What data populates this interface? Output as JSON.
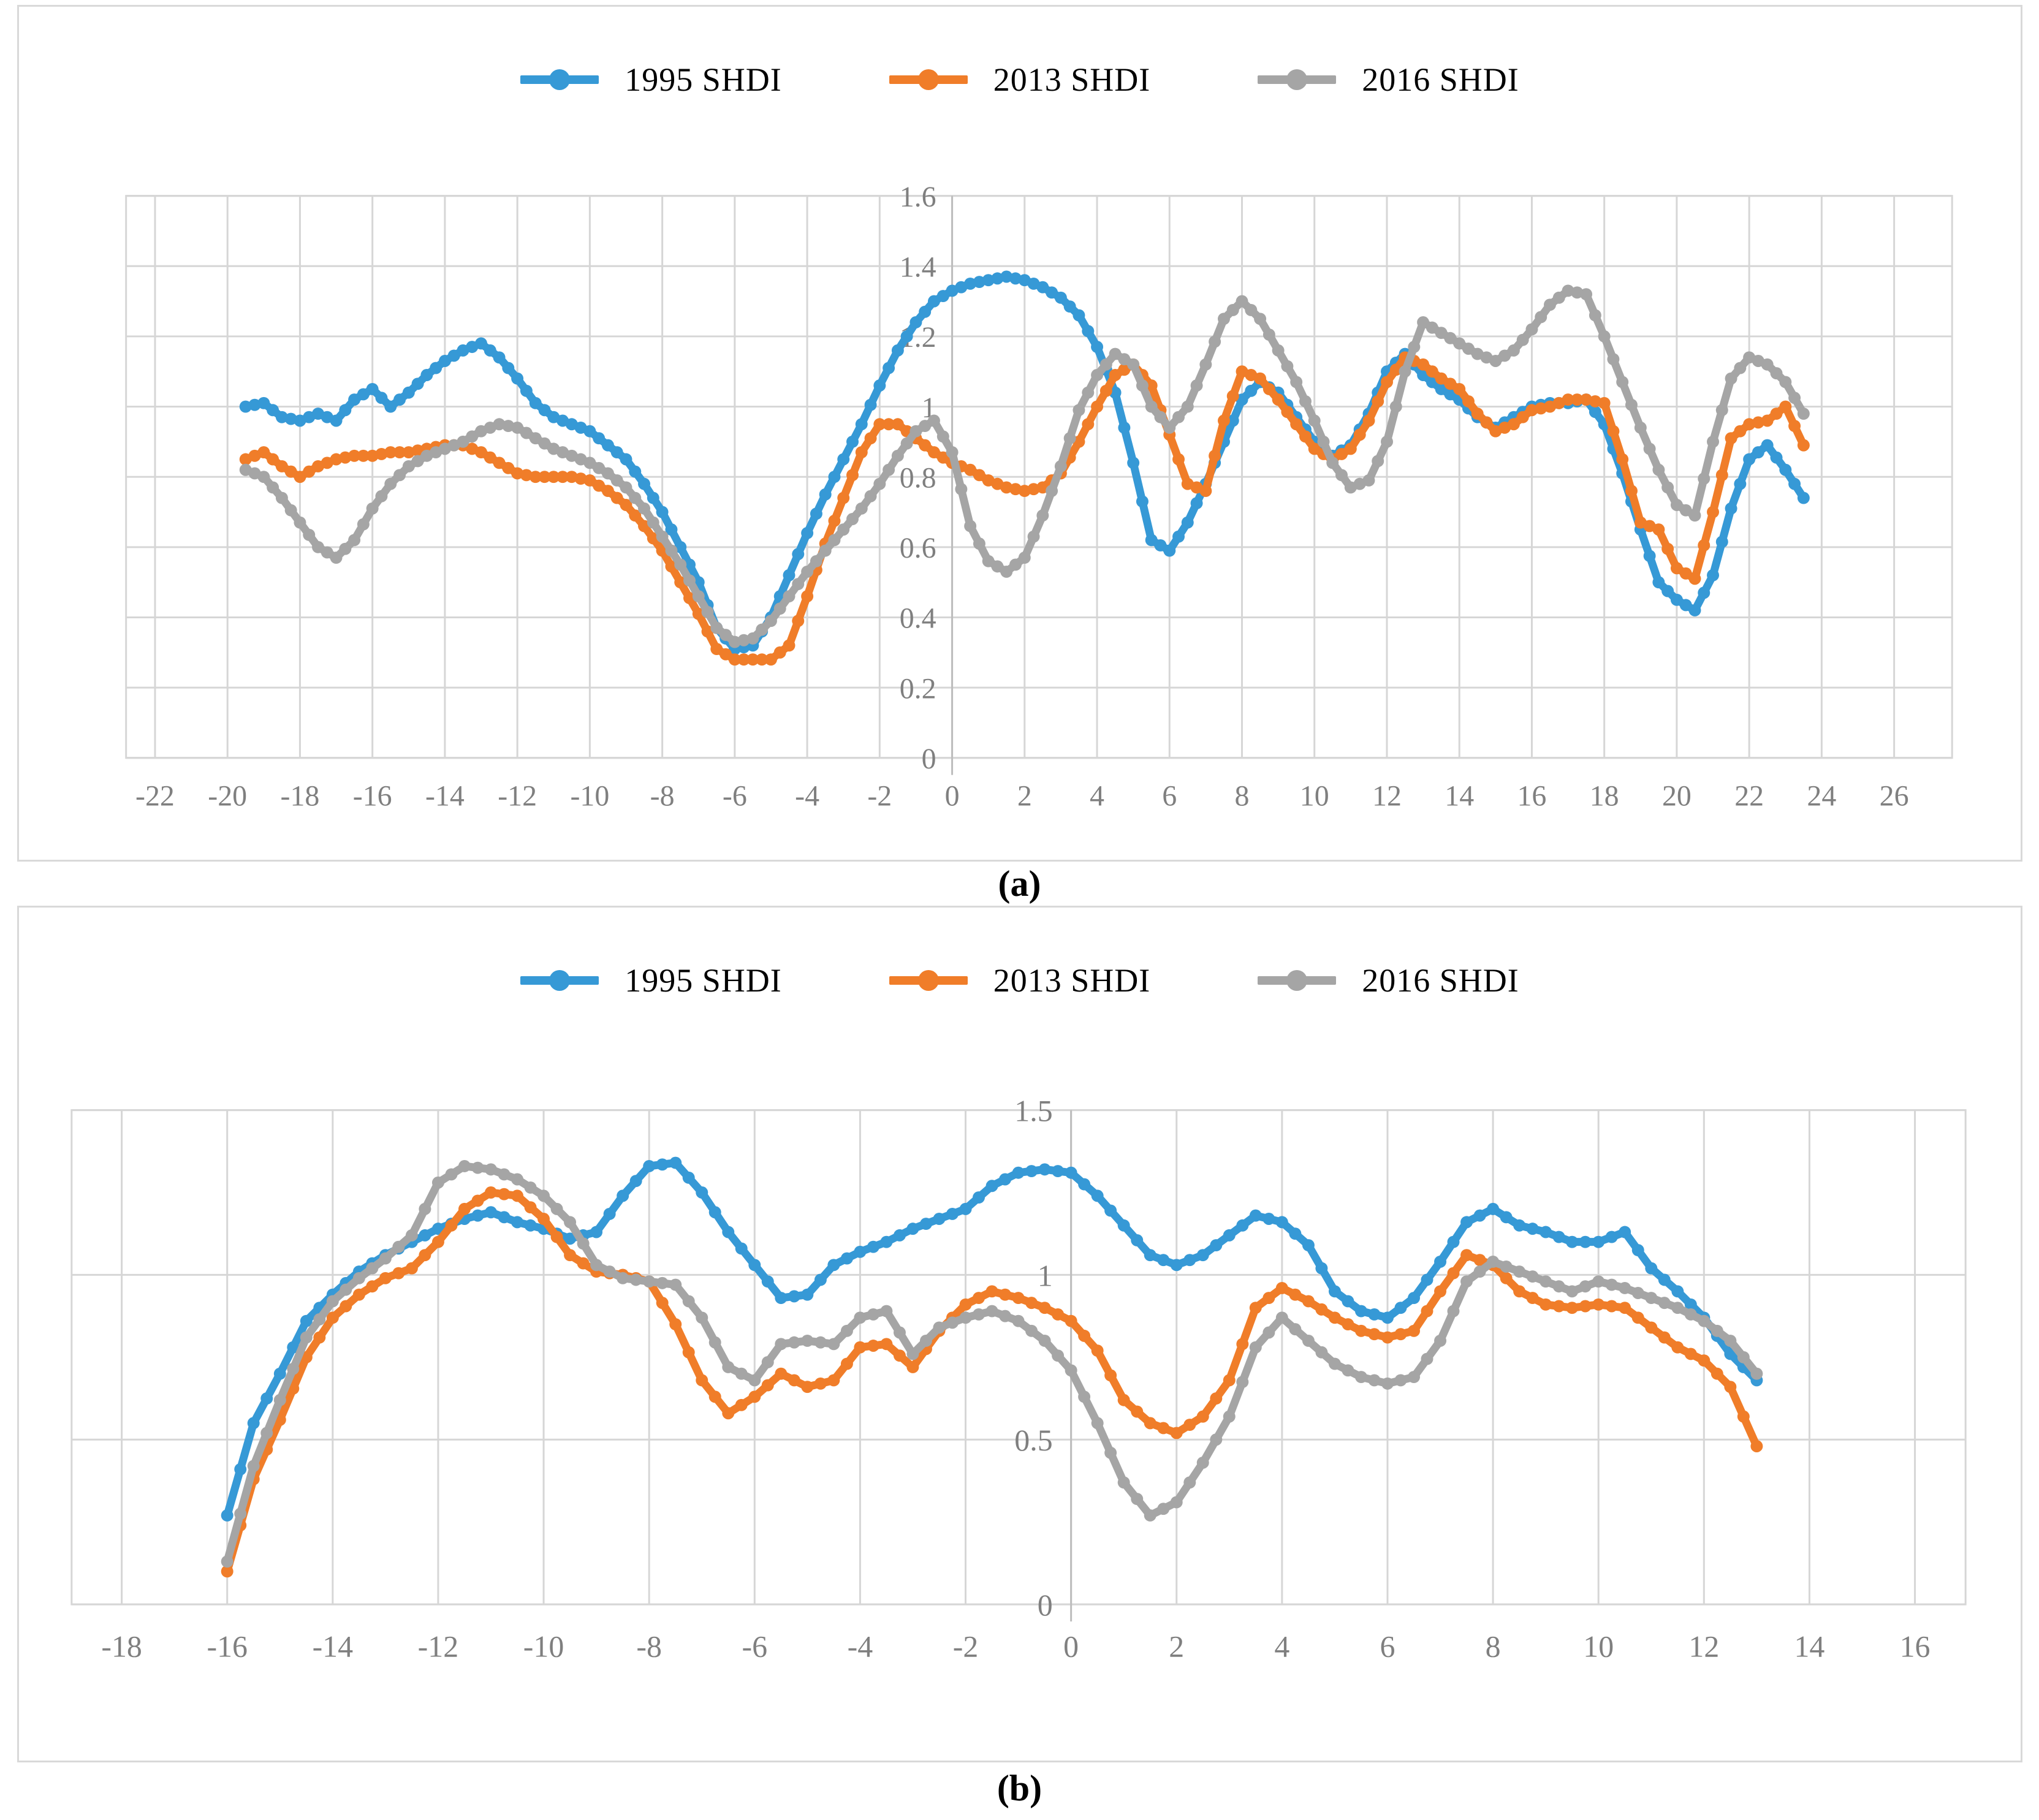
{
  "figure": {
    "captions": {
      "a": "(a)",
      "b": "(b)"
    }
  },
  "styles": {
    "background": "#ffffff",
    "panel_border": "#d9d9d9",
    "grid_color": "#d6d6d6",
    "axis_color": "#bdbdbd",
    "tick_color": "#7f7f7f",
    "series_blue": "#3699d6",
    "series_orange": "#f07d29",
    "series_gray": "#a5a5a5"
  },
  "chart_data": [
    {
      "id": "a",
      "type": "line",
      "title": "",
      "legend_position": "top",
      "grid": true,
      "xlabel": "",
      "ylabel": "",
      "xlim": [
        -22.8,
        27.6
      ],
      "ylim": [
        0,
        1.6
      ],
      "xticks": [
        -22,
        -20,
        -18,
        -16,
        -14,
        -12,
        -10,
        -8,
        -6,
        -4,
        -2,
        0,
        2,
        4,
        6,
        8,
        10,
        12,
        14,
        16,
        18,
        20,
        22,
        24,
        26
      ],
      "yticks": [
        0,
        0.2,
        0.4,
        0.6,
        0.8,
        1,
        1.2,
        1.4,
        1.6
      ],
      "ytick_labels": [
        "0",
        "0.2",
        "0.4",
        "0.6",
        "0.8",
        "1",
        "1.2",
        "1.4",
        "1.6"
      ],
      "x_start": -19.5,
      "x_step": 0.5,
      "x_range": [
        -19.5,
        23.5
      ],
      "series": [
        {
          "name": "1995 SHDI",
          "color": "#3699d6",
          "values": [
            1.0,
            1.01,
            0.97,
            0.96,
            0.98,
            0.96,
            1.02,
            1.05,
            1.0,
            1.04,
            1.09,
            1.13,
            1.16,
            1.18,
            1.14,
            1.08,
            1.01,
            0.97,
            0.95,
            0.93,
            0.89,
            0.85,
            0.78,
            0.7,
            0.6,
            0.5,
            0.37,
            0.31,
            0.32,
            0.4,
            0.52,
            0.64,
            0.75,
            0.85,
            0.95,
            1.06,
            1.16,
            1.24,
            1.3,
            1.33,
            1.35,
            1.36,
            1.37,
            1.36,
            1.34,
            1.31,
            1.26,
            1.17,
            1.04,
            0.84,
            0.62,
            0.59,
            0.67,
            0.78,
            0.9,
            1.02,
            1.07,
            1.04,
            0.97,
            0.9,
            0.86,
            0.89,
            0.98,
            1.1,
            1.15,
            1.09,
            1.05,
            1.02,
            0.97,
            0.94,
            0.97,
            1.0,
            1.01,
            1.01,
            1.02,
            0.95,
            0.81,
            0.65,
            0.5,
            0.45,
            0.42,
            0.52,
            0.71,
            0.85,
            0.89,
            0.82,
            0.74
          ]
        },
        {
          "name": "2013 SHDI",
          "color": "#f07d29",
          "values": [
            0.85,
            0.87,
            0.83,
            0.8,
            0.83,
            0.85,
            0.86,
            0.86,
            0.87,
            0.87,
            0.88,
            0.89,
            0.89,
            0.87,
            0.84,
            0.81,
            0.8,
            0.8,
            0.8,
            0.79,
            0.76,
            0.72,
            0.66,
            0.59,
            0.5,
            0.41,
            0.31,
            0.28,
            0.28,
            0.28,
            0.32,
            0.46,
            0.61,
            0.74,
            0.87,
            0.95,
            0.95,
            0.91,
            0.87,
            0.84,
            0.82,
            0.79,
            0.77,
            0.76,
            0.77,
            0.81,
            0.9,
            1.0,
            1.09,
            1.12,
            1.06,
            0.92,
            0.78,
            0.76,
            0.96,
            1.1,
            1.08,
            1.02,
            0.95,
            0.88,
            0.85,
            0.88,
            0.96,
            1.07,
            1.14,
            1.12,
            1.08,
            1.05,
            0.98,
            0.93,
            0.95,
            0.99,
            1.0,
            1.02,
            1.02,
            1.01,
            0.85,
            0.67,
            0.65,
            0.54,
            0.51,
            0.7,
            0.91,
            0.95,
            0.96,
            1.0,
            0.89
          ]
        },
        {
          "name": "2016 SHDI",
          "color": "#a5a5a5",
          "values": [
            0.82,
            0.8,
            0.74,
            0.67,
            0.6,
            0.57,
            0.62,
            0.71,
            0.78,
            0.83,
            0.86,
            0.88,
            0.9,
            0.93,
            0.95,
            0.94,
            0.91,
            0.88,
            0.86,
            0.84,
            0.81,
            0.77,
            0.71,
            0.63,
            0.55,
            0.46,
            0.37,
            0.33,
            0.34,
            0.39,
            0.46,
            0.53,
            0.59,
            0.65,
            0.71,
            0.78,
            0.86,
            0.93,
            0.96,
            0.87,
            0.66,
            0.56,
            0.53,
            0.57,
            0.69,
            0.83,
            0.99,
            1.09,
            1.15,
            1.12,
            1.0,
            0.94,
            1.0,
            1.12,
            1.25,
            1.3,
            1.25,
            1.16,
            1.07,
            0.96,
            0.84,
            0.77,
            0.79,
            0.9,
            1.1,
            1.24,
            1.21,
            1.18,
            1.15,
            1.13,
            1.16,
            1.22,
            1.29,
            1.33,
            1.32,
            1.2,
            1.07,
            0.94,
            0.82,
            0.72,
            0.69,
            0.9,
            1.08,
            1.14,
            1.12,
            1.07,
            0.98
          ]
        }
      ]
    },
    {
      "id": "b",
      "type": "line",
      "title": "",
      "legend_position": "top",
      "grid": true,
      "xlabel": "",
      "ylabel": "",
      "xlim": [
        -18.95,
        16.96
      ],
      "ylim": [
        0,
        1.5
      ],
      "xticks": [
        -18,
        -16,
        -14,
        -12,
        -10,
        -8,
        -6,
        -4,
        -2,
        0,
        2,
        4,
        6,
        8,
        10,
        12,
        14,
        16
      ],
      "yticks": [
        0,
        0.5,
        1,
        1.5
      ],
      "ytick_labels": [
        "0",
        "0.5",
        "1",
        "1.5"
      ],
      "x_start": -16,
      "x_step": 0.5,
      "x_range": [
        -16,
        13
      ],
      "series": [
        {
          "name": "1995 SHDI",
          "color": "#3699d6",
          "values": [
            0.27,
            0.55,
            0.7,
            0.86,
            0.94,
            1.01,
            1.06,
            1.1,
            1.14,
            1.17,
            1.19,
            1.16,
            1.14,
            1.11,
            1.13,
            1.24,
            1.33,
            1.34,
            1.25,
            1.13,
            1.03,
            0.93,
            0.94,
            1.03,
            1.07,
            1.1,
            1.14,
            1.17,
            1.2,
            1.27,
            1.31,
            1.32,
            1.31,
            1.24,
            1.15,
            1.06,
            1.03,
            1.06,
            1.12,
            1.18,
            1.16,
            1.09,
            0.95,
            0.89,
            0.87,
            0.93,
            1.04,
            1.16,
            1.2,
            1.15,
            1.13,
            1.1,
            1.1,
            1.13,
            1.02,
            0.95,
            0.87,
            0.76,
            0.68
          ]
        },
        {
          "name": "2013 SHDI",
          "color": "#f07d29",
          "values": [
            0.1,
            0.38,
            0.56,
            0.75,
            0.87,
            0.94,
            0.99,
            1.02,
            1.1,
            1.2,
            1.25,
            1.24,
            1.17,
            1.06,
            1.01,
            1.0,
            0.98,
            0.85,
            0.68,
            0.58,
            0.63,
            0.7,
            0.66,
            0.68,
            0.78,
            0.79,
            0.72,
            0.83,
            0.91,
            0.95,
            0.93,
            0.9,
            0.86,
            0.77,
            0.62,
            0.55,
            0.52,
            0.57,
            0.68,
            0.9,
            0.96,
            0.92,
            0.87,
            0.83,
            0.81,
            0.83,
            0.95,
            1.06,
            1.03,
            0.95,
            0.91,
            0.9,
            0.91,
            0.9,
            0.84,
            0.78,
            0.74,
            0.66,
            0.48
          ]
        },
        {
          "name": "2016 SHDI",
          "color": "#a5a5a5",
          "values": [
            0.13,
            0.42,
            0.62,
            0.81,
            0.92,
            0.99,
            1.05,
            1.12,
            1.28,
            1.33,
            1.32,
            1.29,
            1.24,
            1.16,
            1.03,
            0.99,
            0.98,
            0.97,
            0.87,
            0.72,
            0.68,
            0.79,
            0.8,
            0.79,
            0.87,
            0.89,
            0.76,
            0.84,
            0.87,
            0.89,
            0.86,
            0.8,
            0.71,
            0.55,
            0.37,
            0.27,
            0.31,
            0.43,
            0.57,
            0.78,
            0.87,
            0.8,
            0.73,
            0.69,
            0.67,
            0.69,
            0.8,
            0.98,
            1.04,
            1.01,
            0.98,
            0.95,
            0.98,
            0.96,
            0.93,
            0.9,
            0.86,
            0.8,
            0.7
          ]
        }
      ]
    }
  ]
}
